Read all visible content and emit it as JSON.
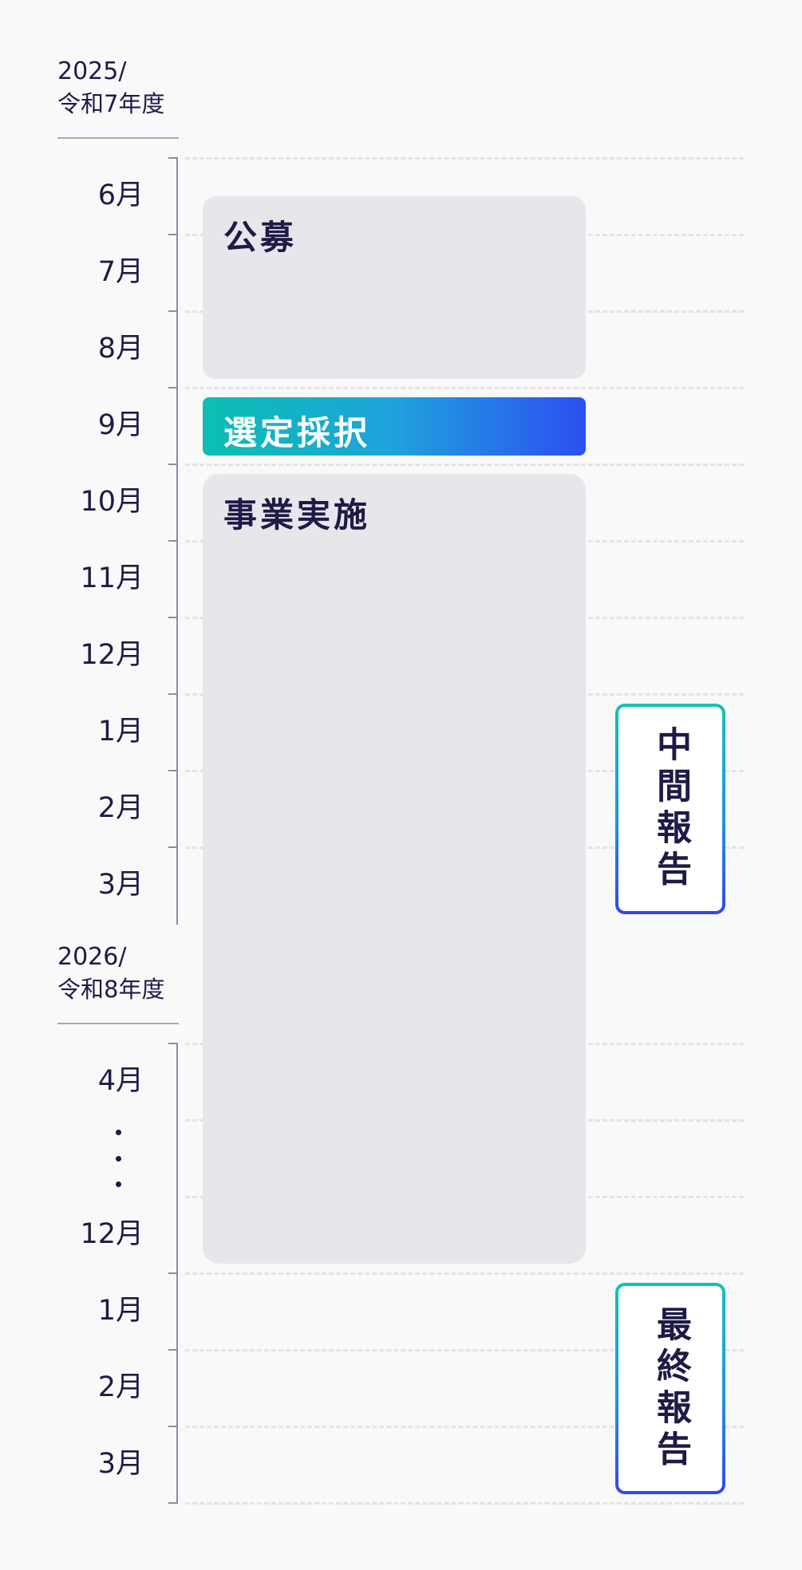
{
  "fiscal_years": [
    {
      "year": "2025/",
      "era": "令和7年度"
    },
    {
      "year": "2026/",
      "era": "令和8年度"
    }
  ],
  "months_fy2025": [
    "6月",
    "7月",
    "8月",
    "9月",
    "10月",
    "11月",
    "12月",
    "1月",
    "2月",
    "3月"
  ],
  "months_fy2026": [
    "4月",
    "12月",
    "1月",
    "2月",
    "3月"
  ],
  "phases": {
    "recruitment": "公募",
    "selection": "選定採択",
    "implementation": "事業実施"
  },
  "reports": {
    "interim": "中間報告",
    "final": "最終報告"
  },
  "colors": {
    "text": "#1e1b47",
    "block": "#e7e6eb",
    "gradient_start": "#0bbfb2",
    "gradient_end": "#2d4ff2",
    "axis": "#8d8aa6"
  }
}
